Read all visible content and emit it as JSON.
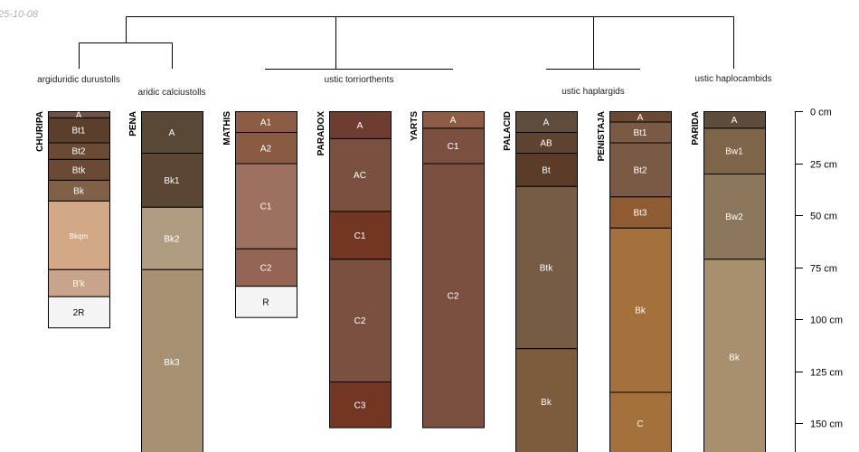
{
  "chart_data": {
    "type": "soil-profile-sketch",
    "date_label": "25-10-08",
    "depth_unit": "cm",
    "depth_ticks": [
      0,
      25,
      50,
      75,
      100,
      125,
      150
    ],
    "depth_tick_labels": [
      "0 cm",
      "25 cm",
      "50 cm",
      "75 cm",
      "100 cm",
      "125 cm",
      "150 cm"
    ],
    "group_labels": [
      "argiduridic durustolls",
      "aridic calciustolls",
      "ustic torriorthents",
      "ustic haplargids",
      "ustic haplocambids"
    ],
    "profiles": [
      {
        "name": "CHURIPA",
        "horizons": [
          {
            "name": "A",
            "top": 0,
            "bottom": 3,
            "color": "#6e5444"
          },
          {
            "name": "Bt1",
            "top": 3,
            "bottom": 15,
            "color": "#5b3f2c"
          },
          {
            "name": "Bt2",
            "top": 15,
            "bottom": 23,
            "color": "#6a4a34"
          },
          {
            "name": "Btk",
            "top": 23,
            "bottom": 33,
            "color": "#6a4a34"
          },
          {
            "name": "Bk",
            "top": 33,
            "bottom": 43,
            "color": "#806048"
          },
          {
            "name": "Bkqm",
            "top": 43,
            "bottom": 76,
            "color": "#d2a886"
          },
          {
            "name": "B'k",
            "top": 76,
            "bottom": 89,
            "color": "#c8a48c"
          },
          {
            "name": "2R",
            "top": 89,
            "bottom": 104,
            "color": "#f4f4f4"
          }
        ]
      },
      {
        "name": "PENA",
        "horizons": [
          {
            "name": "A",
            "top": 0,
            "bottom": 20,
            "color": "#594836"
          },
          {
            "name": "Bk1",
            "top": 20,
            "bottom": 46,
            "color": "#5a4632"
          },
          {
            "name": "Bk2",
            "top": 46,
            "bottom": 76,
            "color": "#b09c80"
          },
          {
            "name": "Bk3",
            "top": 76,
            "bottom": 165,
            "color": "#a89072"
          }
        ]
      },
      {
        "name": "MATHIS",
        "horizons": [
          {
            "name": "A1",
            "top": 0,
            "bottom": 10,
            "color": "#8c5c44"
          },
          {
            "name": "A2",
            "top": 10,
            "bottom": 25,
            "color": "#8a5a42"
          },
          {
            "name": "C1",
            "top": 25,
            "bottom": 66,
            "color": "#9e7060"
          },
          {
            "name": "C2",
            "top": 66,
            "bottom": 84,
            "color": "#946454"
          },
          {
            "name": "R",
            "top": 84,
            "bottom": 99,
            "color": "#f4f4f4"
          }
        ]
      },
      {
        "name": "PARADOX",
        "horizons": [
          {
            "name": "A",
            "top": 0,
            "bottom": 13,
            "color": "#6e3c30"
          },
          {
            "name": "AC",
            "top": 13,
            "bottom": 48,
            "color": "#7c5040"
          },
          {
            "name": "C1",
            "top": 48,
            "bottom": 71,
            "color": "#733623"
          },
          {
            "name": "C2",
            "top": 71,
            "bottom": 130,
            "color": "#7c5040"
          },
          {
            "name": "C3",
            "top": 130,
            "bottom": 152,
            "color": "#733623"
          }
        ]
      },
      {
        "name": "YARTS",
        "horizons": [
          {
            "name": "A",
            "top": 0,
            "bottom": 8,
            "color": "#8c5c44"
          },
          {
            "name": "C1",
            "top": 8,
            "bottom": 25,
            "color": "#7c5040"
          },
          {
            "name": "C2",
            "top": 25,
            "bottom": 152,
            "color": "#7c5040"
          }
        ]
      },
      {
        "name": "PALACID",
        "horizons": [
          {
            "name": "A",
            "top": 0,
            "bottom": 10,
            "color": "#5e4c3c"
          },
          {
            "name": "AB",
            "top": 10,
            "bottom": 20,
            "color": "#5e4430"
          },
          {
            "name": "Bt",
            "top": 20,
            "bottom": 36,
            "color": "#5a3c28"
          },
          {
            "name": "Btk",
            "top": 36,
            "bottom": 114,
            "color": "#765c44"
          },
          {
            "name": "Bk",
            "top": 114,
            "bottom": 165,
            "color": "#7c5c3c"
          }
        ]
      },
      {
        "name": "PENISTAJA",
        "horizons": [
          {
            "name": "A",
            "top": 0,
            "bottom": 5,
            "color": "#6a4834"
          },
          {
            "name": "Bt1",
            "top": 5,
            "bottom": 15,
            "color": "#7a5a44"
          },
          {
            "name": "Bt2",
            "top": 15,
            "bottom": 41,
            "color": "#7a5a44"
          },
          {
            "name": "Bt3",
            "top": 41,
            "bottom": 56,
            "color": "#905c34"
          },
          {
            "name": "Bk",
            "top": 56,
            "bottom": 135,
            "color": "#a4703c"
          },
          {
            "name": "C",
            "top": 135,
            "bottom": 165,
            "color": "#a4703c"
          }
        ]
      },
      {
        "name": "PARIDA",
        "horizons": [
          {
            "name": "A",
            "top": 0,
            "bottom": 8,
            "color": "#5e4c3c"
          },
          {
            "name": "Bw1",
            "top": 8,
            "bottom": 30,
            "color": "#7e6448"
          },
          {
            "name": "Bw2",
            "top": 30,
            "bottom": 71,
            "color": "#8c765c"
          },
          {
            "name": "Bk",
            "top": 71,
            "bottom": 165,
            "color": "#a8906e"
          }
        ]
      }
    ]
  }
}
